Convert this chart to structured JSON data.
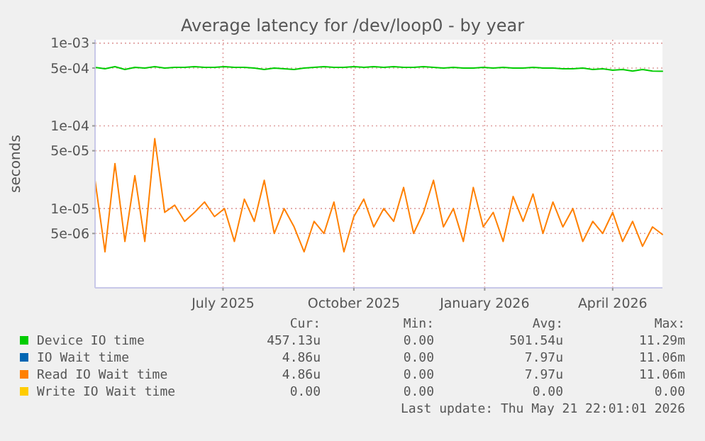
{
  "chart_data": {
    "type": "line",
    "title": "Average latency for /dev/loop0 - by year",
    "ylabel": "seconds",
    "log": "y",
    "grid": true,
    "legend": "bottom",
    "x": [
      "2025-04-17",
      "2025-04-24",
      "2025-05-01",
      "2025-05-08",
      "2025-05-15",
      "2025-05-22",
      "2025-05-29",
      "2025-06-05",
      "2025-06-12",
      "2025-06-19",
      "2025-06-26",
      "2025-07-03",
      "2025-07-10",
      "2025-07-17",
      "2025-07-24",
      "2025-07-31",
      "2025-08-07",
      "2025-08-14",
      "2025-08-21",
      "2025-08-28",
      "2025-09-04",
      "2025-09-11",
      "2025-09-18",
      "2025-09-25",
      "2025-10-02",
      "2025-10-09",
      "2025-10-16",
      "2025-10-23",
      "2025-10-30",
      "2025-11-06",
      "2025-11-13",
      "2025-11-20",
      "2025-11-27",
      "2025-12-04",
      "2025-12-11",
      "2025-12-18",
      "2025-12-25",
      "2026-01-01",
      "2026-01-08",
      "2026-01-15",
      "2026-01-22",
      "2026-01-29",
      "2026-02-05",
      "2026-02-12",
      "2026-02-19",
      "2026-02-26",
      "2026-03-05",
      "2026-03-12",
      "2026-03-19",
      "2026-03-26",
      "2026-04-02",
      "2026-04-09",
      "2026-04-16",
      "2026-04-23",
      "2026-04-30",
      "2026-05-07",
      "2026-05-14",
      "2026-05-21"
    ],
    "xlim": [
      "2025-04-17",
      "2026-05-21"
    ],
    "xticks": [
      {
        "value": "2025-07-16",
        "label": "July 2025"
      },
      {
        "value": "2025-10-16",
        "label": "October 2025"
      },
      {
        "value": "2026-01-16",
        "label": "January 2026"
      },
      {
        "value": "2026-04-16",
        "label": "April 2026"
      }
    ],
    "ylim": [
      1.1e-06,
      0.0011
    ],
    "yticks": [
      {
        "value": 0.001,
        "label": "1e-03"
      },
      {
        "value": 0.0005,
        "label": "5e-04"
      },
      {
        "value": 0.0001,
        "label": "1e-04"
      },
      {
        "value": 5e-05,
        "label": "5e-05"
      },
      {
        "value": 1e-05,
        "label": "1e-05"
      },
      {
        "value": 5e-06,
        "label": "5e-06"
      }
    ],
    "series": [
      {
        "name": "Device IO time",
        "color": "#00cc00",
        "values": [
          0.00051,
          0.00049,
          0.00052,
          0.00048,
          0.00051,
          0.0005,
          0.00052,
          0.0005,
          0.00051,
          0.00051,
          0.00052,
          0.00051,
          0.00051,
          0.00052,
          0.00051,
          0.00051,
          0.0005,
          0.00048,
          0.0005,
          0.00049,
          0.00048,
          0.0005,
          0.00051,
          0.00052,
          0.00051,
          0.00051,
          0.00052,
          0.00051,
          0.00052,
          0.00051,
          0.00052,
          0.00051,
          0.00051,
          0.00052,
          0.00051,
          0.0005,
          0.00051,
          0.0005,
          0.0005,
          0.00051,
          0.0005,
          0.00051,
          0.0005,
          0.0005,
          0.00051,
          0.0005,
          0.0005,
          0.00049,
          0.00049,
          0.0005,
          0.00048,
          0.00049,
          0.00047,
          0.00048,
          0.00046,
          0.00048,
          0.00046,
          0.000457
        ]
      },
      {
        "name": "IO Wait time",
        "color": "#0066b3",
        "values": [
          null,
          null,
          null,
          null,
          null,
          null,
          null,
          null,
          null,
          null,
          null,
          null,
          null,
          null,
          null,
          null,
          null,
          null,
          null,
          null,
          null,
          null,
          null,
          null,
          null,
          null,
          null,
          null,
          null,
          null,
          null,
          null,
          null,
          null,
          null,
          null,
          null,
          null,
          null,
          null,
          null,
          null,
          null,
          null,
          null,
          null,
          null,
          null,
          null,
          null,
          null,
          null,
          null,
          null,
          null,
          null,
          null,
          null
        ]
      },
      {
        "name": "Read IO Wait time",
        "color": "#ff8000",
        "values": [
          2.2e-05,
          3e-06,
          3.5e-05,
          4e-06,
          2.5e-05,
          4e-06,
          7e-05,
          9e-06,
          1.1e-05,
          7e-06,
          9e-06,
          1.2e-05,
          8e-06,
          1e-05,
          4e-06,
          1.3e-05,
          7e-06,
          2.2e-05,
          5e-06,
          1e-05,
          6e-06,
          3e-06,
          7e-06,
          5e-06,
          1.2e-05,
          3e-06,
          8e-06,
          1.3e-05,
          6e-06,
          1e-05,
          7e-06,
          1.8e-05,
          5e-06,
          9e-06,
          2.2e-05,
          6e-06,
          1e-05,
          4e-06,
          1.8e-05,
          6e-06,
          9e-06,
          4e-06,
          1.4e-05,
          7e-06,
          1.5e-05,
          5e-06,
          1.2e-05,
          6e-06,
          1e-05,
          4e-06,
          7e-06,
          5e-06,
          9e-06,
          4e-06,
          7e-06,
          3.5e-06,
          6e-06,
          4.86e-06
        ]
      },
      {
        "name": "Write IO Wait time",
        "color": "#ffcc00",
        "values": [
          null,
          null,
          null,
          null,
          null,
          null,
          null,
          null,
          null,
          null,
          null,
          null,
          null,
          null,
          null,
          null,
          null,
          null,
          null,
          null,
          null,
          null,
          null,
          null,
          null,
          null,
          null,
          null,
          null,
          null,
          null,
          null,
          null,
          null,
          null,
          null,
          null,
          null,
          null,
          null,
          null,
          null,
          null,
          null,
          null,
          null,
          null,
          null,
          null,
          null,
          null,
          null,
          null,
          null,
          null,
          null,
          null,
          null
        ]
      }
    ],
    "annotations": [
      "Cur:",
      "Min:",
      "Avg:",
      "Max:",
      "457.13u",
      "0.00",
      "501.54u",
      "11.29m",
      "4.86u",
      "0.00",
      "7.97u",
      "11.06m",
      "4.86u",
      "0.00",
      "7.97u",
      "11.06m",
      "0.00",
      "0.00",
      "0.00",
      "0.00",
      "Last update: Thu May 21 22:01:01 2026"
    ]
  }
}
